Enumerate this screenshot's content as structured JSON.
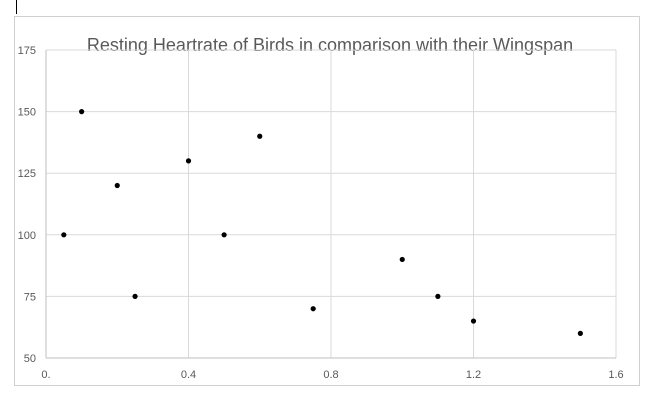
{
  "chart_data": {
    "type": "scatter",
    "title": "Resting Heartrate of Birds in comparison with their Wingspan",
    "xlabel": "",
    "ylabel": "",
    "xlim": [
      0,
      1.6
    ],
    "ylim": [
      50,
      175
    ],
    "x_ticks": [
      0,
      0.4,
      0.8,
      1.2,
      1.6
    ],
    "x_tick_labels": [
      "0.",
      "0.4",
      "0.8",
      "1.2",
      "1.6"
    ],
    "y_ticks": [
      50,
      75,
      100,
      125,
      150,
      175
    ],
    "y_tick_labels": [
      "50",
      "75",
      "100",
      "125",
      "150",
      "175"
    ],
    "grid": true,
    "marker_color": "#000000",
    "series": [
      {
        "points": [
          {
            "x": 0.05,
            "y": 100
          },
          {
            "x": 0.1,
            "y": 150
          },
          {
            "x": 0.2,
            "y": 120
          },
          {
            "x": 0.25,
            "y": 75
          },
          {
            "x": 0.4,
            "y": 130
          },
          {
            "x": 0.5,
            "y": 100
          },
          {
            "x": 0.6,
            "y": 140
          },
          {
            "x": 0.75,
            "y": 70
          },
          {
            "x": 1.0,
            "y": 90
          },
          {
            "x": 1.1,
            "y": 75
          },
          {
            "x": 1.2,
            "y": 65
          },
          {
            "x": 1.5,
            "y": 60
          }
        ]
      }
    ]
  }
}
